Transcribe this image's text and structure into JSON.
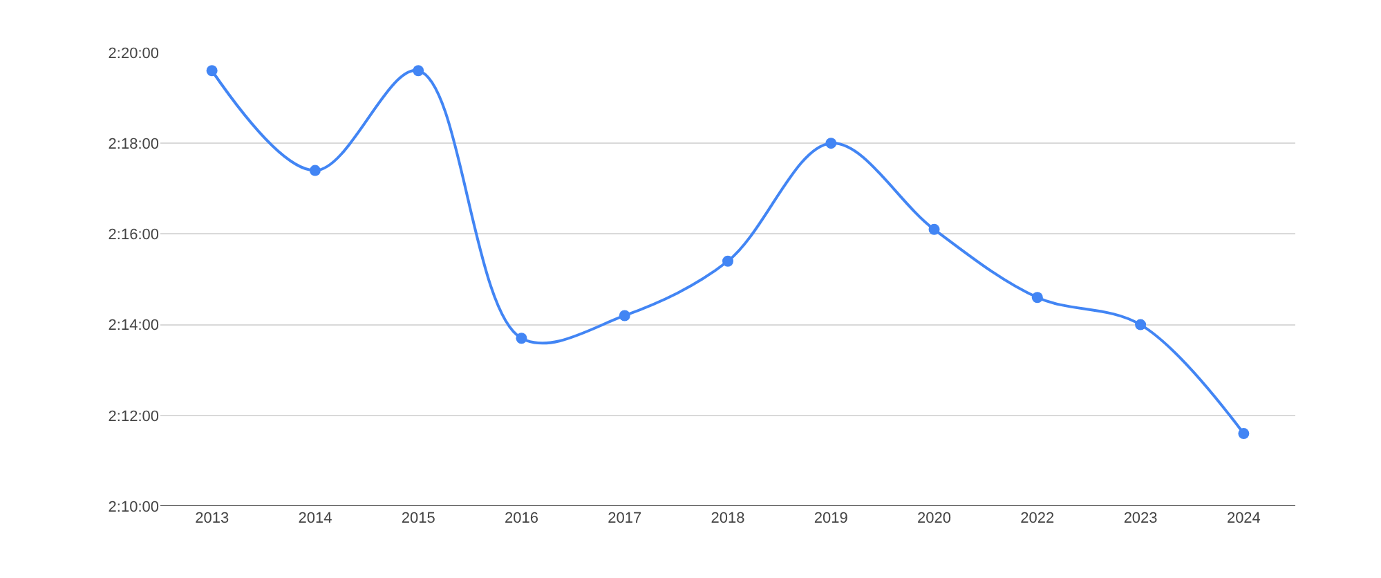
{
  "chart_data": {
    "type": "line",
    "categories": [
      "2013",
      "2014",
      "2015",
      "2016",
      "2017",
      "2018",
      "2019",
      "2020",
      "2022",
      "2023",
      "2024"
    ],
    "series": [
      {
        "color": "#4285f4",
        "values": [
          139.6,
          137.4,
          139.6,
          133.7,
          134.2,
          135.4,
          138.0,
          136.1,
          134.6,
          134.0,
          131.6
        ]
      }
    ],
    "ylim": [
      130,
      140
    ],
    "yticks": [
      {
        "value": 130,
        "label": "2:10:00"
      },
      {
        "value": 132,
        "label": "2:12:00"
      },
      {
        "value": 134,
        "label": "2:14:00"
      },
      {
        "value": 136,
        "label": "2:16:00"
      },
      {
        "value": 138,
        "label": "2:18:00"
      },
      {
        "value": 140,
        "label": "2:20:00"
      }
    ],
    "grid": "y",
    "marker": "circle",
    "line_style": "solid",
    "legend": false
  }
}
